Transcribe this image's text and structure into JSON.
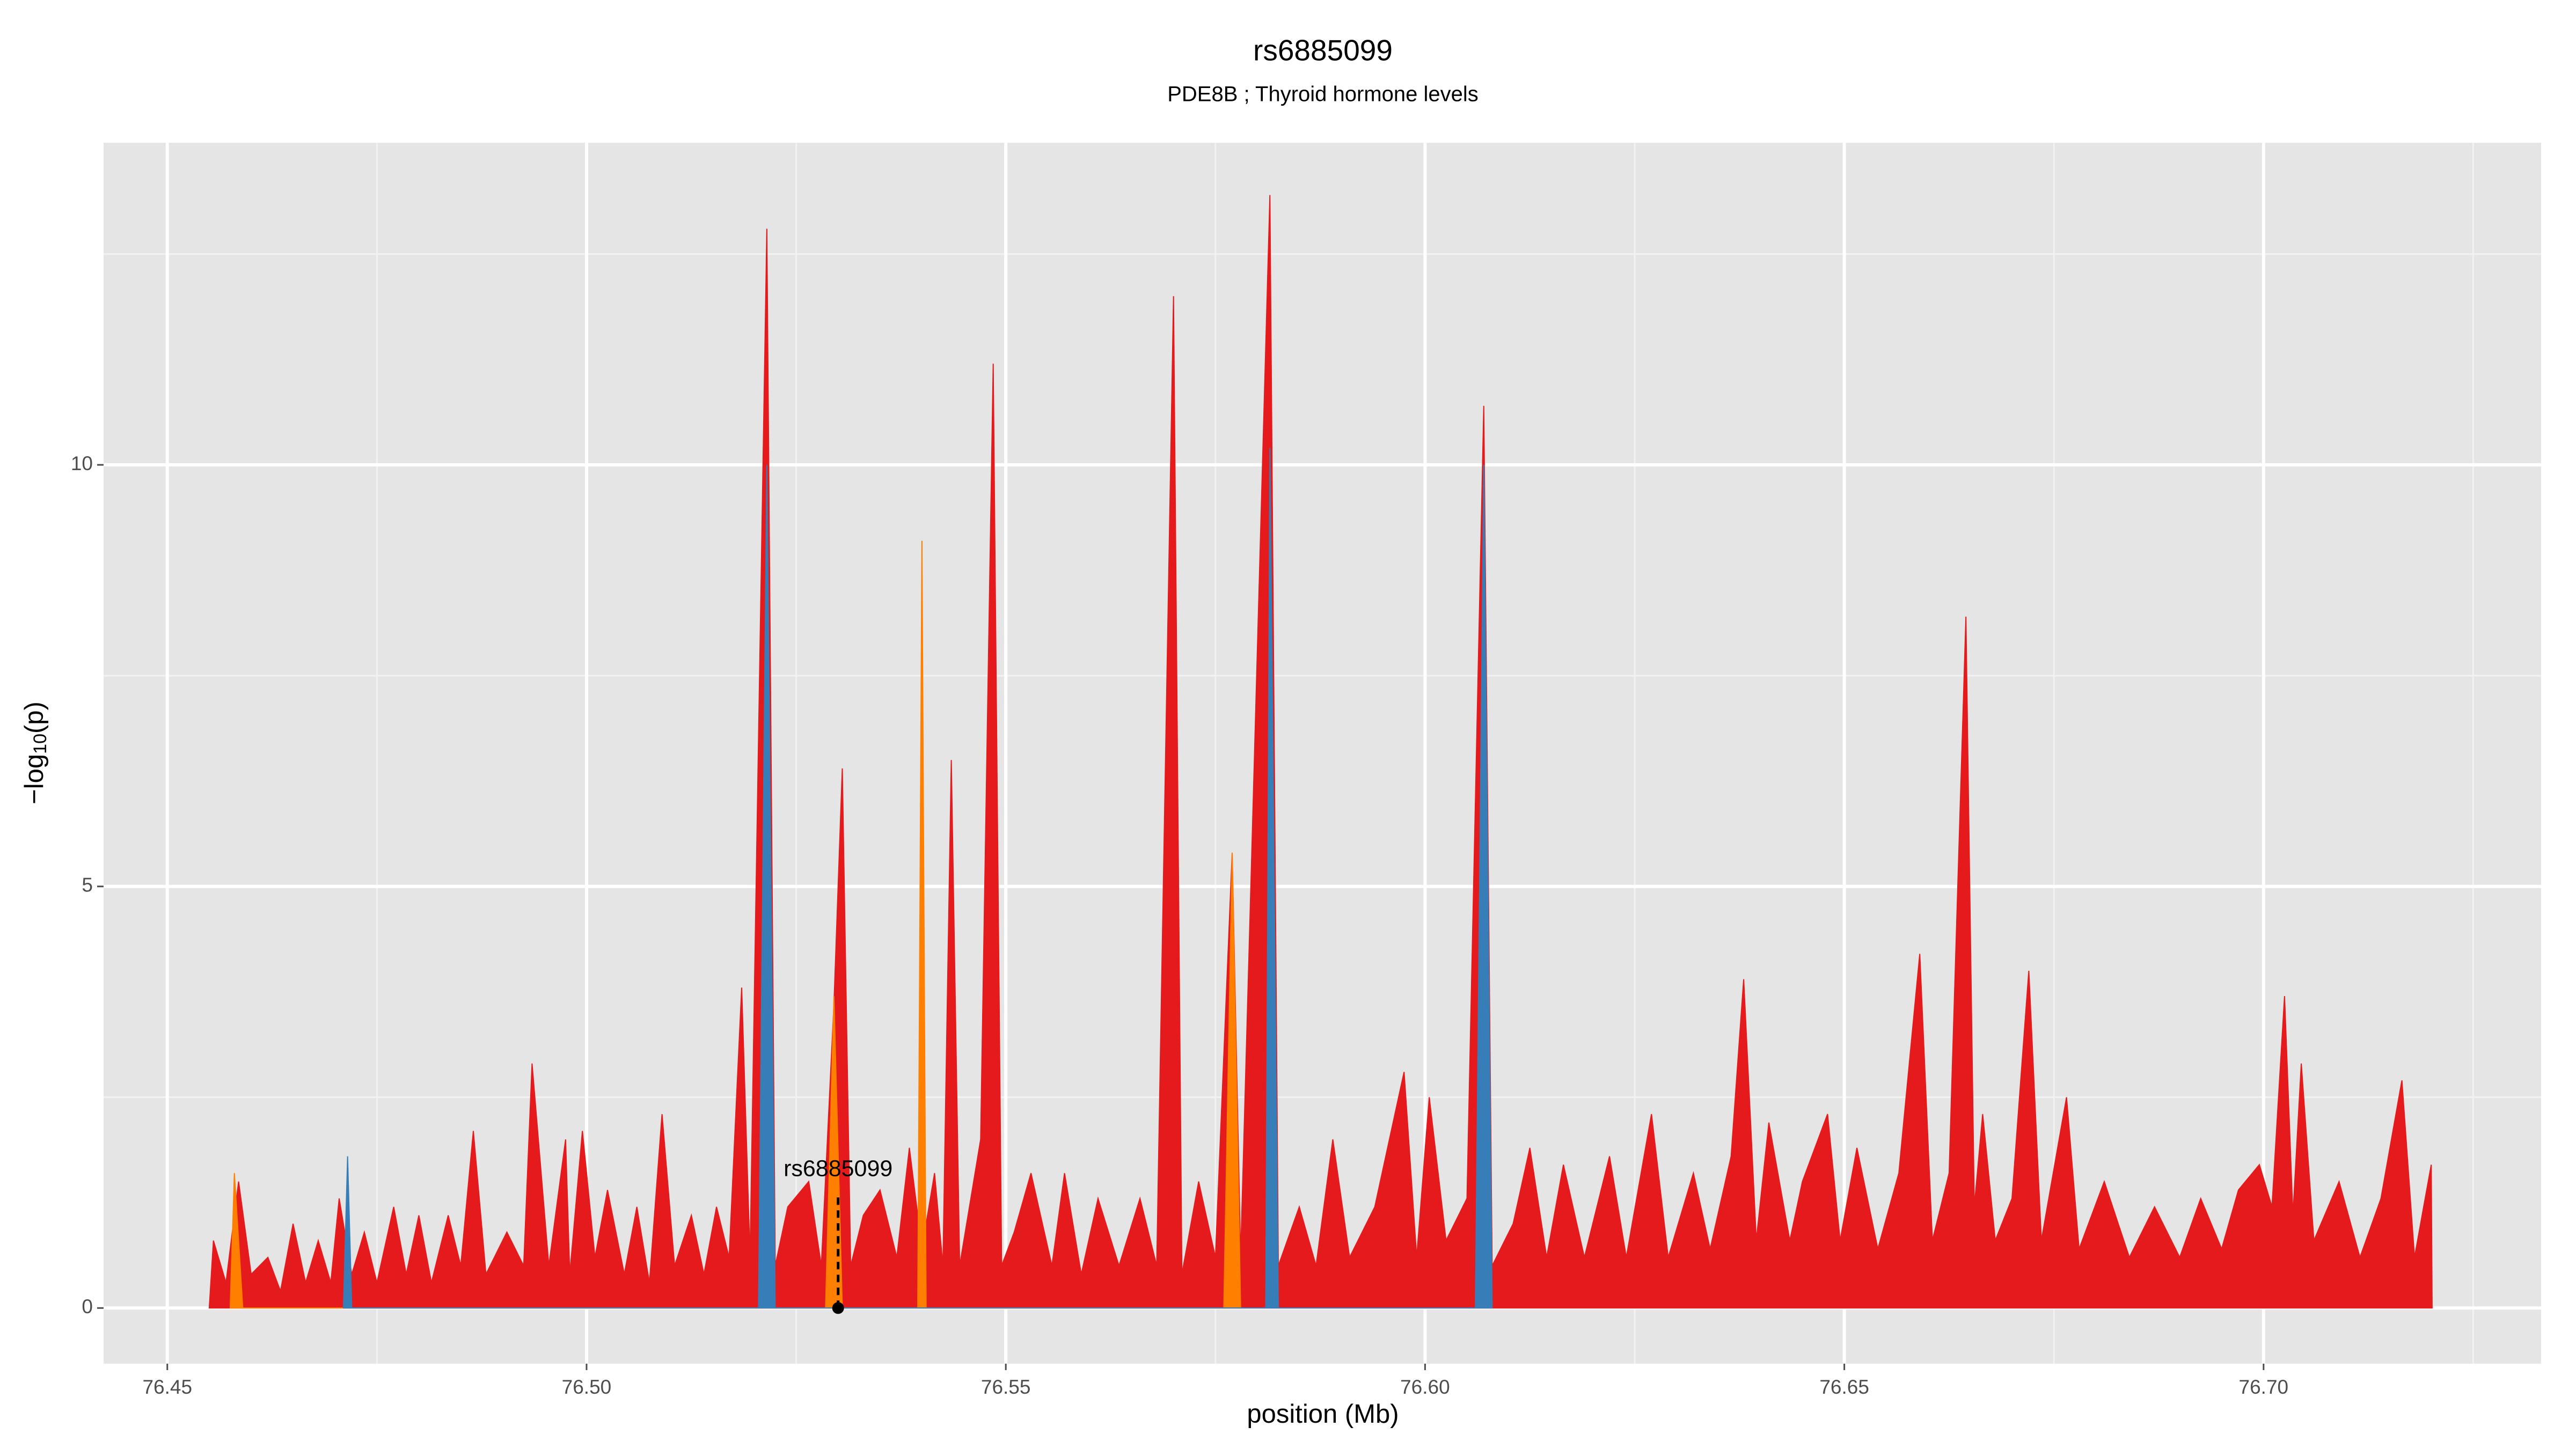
{
  "chart_data": {
    "type": "area",
    "title": "rs6885099",
    "subtitle": "PDE8B ; Thyroid hormone levels",
    "xlabel": "position (Mb)",
    "ylabel": {
      "prefix": "−log",
      "subscript": "10",
      "suffix": "(p)"
    },
    "xlim": [
      76.4424,
      76.7331
    ],
    "ylim": [
      -0.66,
      13.82
    ],
    "xticks": [
      76.45,
      {
        "value": 76.5,
        "label": "76.50"
      },
      76.55,
      {
        "value": 76.6,
        "label": "76.60"
      },
      76.65,
      {
        "value": 76.7,
        "label": "76.70"
      }
    ],
    "yticks": [
      0,
      5,
      10
    ],
    "x_minor_ticks": [
      76.475,
      76.525,
      76.575,
      76.625,
      76.675,
      76.725
    ],
    "y_minor_ticks": [
      2.5,
      7.5,
      12.5
    ],
    "grid": true,
    "annotation": {
      "text": "rs6885099",
      "x": 76.53,
      "y": 0
    },
    "series": [
      {
        "color": "#e41a1c",
        "x": [
          76.455,
          76.4555,
          76.457,
          76.4585,
          76.46,
          76.462,
          76.4635,
          76.465,
          76.4665,
          76.468,
          76.4695,
          76.4705,
          76.472,
          76.4735,
          76.475,
          76.477,
          76.4785,
          76.48,
          76.4815,
          76.4835,
          76.485,
          76.4865,
          76.488,
          76.4905,
          76.4925,
          76.4935,
          76.4955,
          76.4975,
          76.498,
          76.4995,
          76.501,
          76.5025,
          76.5045,
          76.506,
          76.5075,
          76.509,
          76.5105,
          76.5125,
          76.514,
          76.5155,
          76.517,
          76.5185,
          76.5195,
          76.5215,
          76.5225,
          76.524,
          76.5265,
          76.528,
          76.5295,
          76.5305,
          76.5315,
          76.533,
          76.535,
          76.537,
          76.5385,
          76.54,
          76.5415,
          76.5425,
          76.5435,
          76.5445,
          76.547,
          76.5485,
          76.5495,
          76.551,
          76.553,
          76.5555,
          76.557,
          76.559,
          76.561,
          76.5635,
          76.566,
          76.568,
          76.57,
          76.571,
          76.573,
          76.575,
          76.577,
          76.578,
          76.5815,
          76.5825,
          76.585,
          76.587,
          76.589,
          76.591,
          76.594,
          76.5975,
          76.599,
          76.6005,
          76.6025,
          76.605,
          76.607,
          76.608,
          76.6105,
          76.6125,
          76.6145,
          76.6165,
          76.619,
          76.622,
          76.624,
          76.627,
          76.629,
          76.632,
          76.634,
          76.6365,
          76.638,
          76.6395,
          76.641,
          76.6435,
          76.645,
          76.648,
          76.6495,
          76.6515,
          76.654,
          76.6565,
          76.659,
          76.6605,
          76.6625,
          76.6645,
          76.6655,
          76.6665,
          76.668,
          76.67,
          76.672,
          76.6735,
          76.6765,
          76.678,
          76.681,
          76.684,
          76.687,
          76.69,
          76.6925,
          76.695,
          76.697,
          76.6995,
          76.701,
          76.7025,
          76.7035,
          76.7045,
          76.706,
          76.709,
          76.7115,
          76.714,
          76.7165,
          76.718,
          76.72,
          76.7201
        ],
        "values": [
          0,
          0.8,
          0.3,
          1.5,
          0.4,
          0.6,
          0.2,
          1.0,
          0.3,
          0.8,
          0.3,
          1.3,
          0.4,
          0.9,
          0.3,
          1.2,
          0.4,
          1.1,
          0.3,
          1.1,
          0.5,
          2.1,
          0.4,
          0.9,
          0.5,
          2.9,
          0.5,
          2.0,
          0.4,
          2.1,
          0.6,
          1.4,
          0.4,
          1.2,
          0.3,
          2.3,
          0.5,
          1.1,
          0.4,
          1.2,
          0.6,
          3.8,
          0.6,
          12.8,
          0.5,
          1.2,
          1.5,
          0.5,
          3.6,
          6.4,
          0.5,
          1.1,
          1.4,
          0.6,
          1.9,
          0.7,
          1.6,
          0.5,
          6.5,
          0.5,
          2.0,
          11.2,
          0.5,
          0.9,
          1.6,
          0.5,
          1.6,
          0.4,
          1.3,
          0.5,
          1.3,
          0.5,
          12.0,
          0.4,
          1.5,
          0.6,
          5.4,
          0.6,
          13.2,
          0.5,
          1.2,
          0.5,
          2.0,
          0.6,
          1.2,
          2.8,
          0.6,
          2.5,
          0.8,
          1.3,
          10.7,
          0.5,
          1.0,
          1.9,
          0.6,
          1.7,
          0.6,
          1.8,
          0.6,
          2.3,
          0.6,
          1.6,
          0.7,
          1.8,
          3.9,
          0.8,
          2.2,
          0.8,
          1.5,
          2.3,
          0.8,
          1.9,
          0.7,
          1.6,
          4.2,
          0.8,
          1.6,
          8.2,
          1.2,
          2.3,
          0.8,
          1.3,
          4.0,
          0.8,
          2.5,
          0.7,
          1.5,
          0.6,
          1.2,
          0.6,
          1.3,
          0.7,
          1.4,
          1.7,
          1.2,
          3.7,
          1.1,
          2.9,
          0.8,
          1.5,
          0.6,
          1.3,
          2.7,
          0.6,
          1.7,
          0
        ]
      },
      {
        "color": "#ff7f00",
        "x": [
          76.4575,
          76.458,
          76.459,
          76.5285,
          76.5295,
          76.5305,
          76.5395,
          76.54,
          76.5405,
          76.576,
          76.577,
          76.578
        ],
        "values": [
          0,
          1.6,
          0,
          0,
          3.7,
          0,
          0,
          9.1,
          0,
          0,
          5.4,
          0
        ]
      },
      {
        "color": "#377eb8",
        "x": [
          76.471,
          76.4715,
          76.472,
          76.5205,
          76.5215,
          76.5225,
          76.581,
          76.5815,
          76.5825,
          76.606,
          76.607,
          76.608
        ],
        "values": [
          0,
          1.8,
          0,
          0,
          10.0,
          0,
          0,
          10.2,
          0,
          0,
          10.0,
          0
        ]
      }
    ]
  }
}
